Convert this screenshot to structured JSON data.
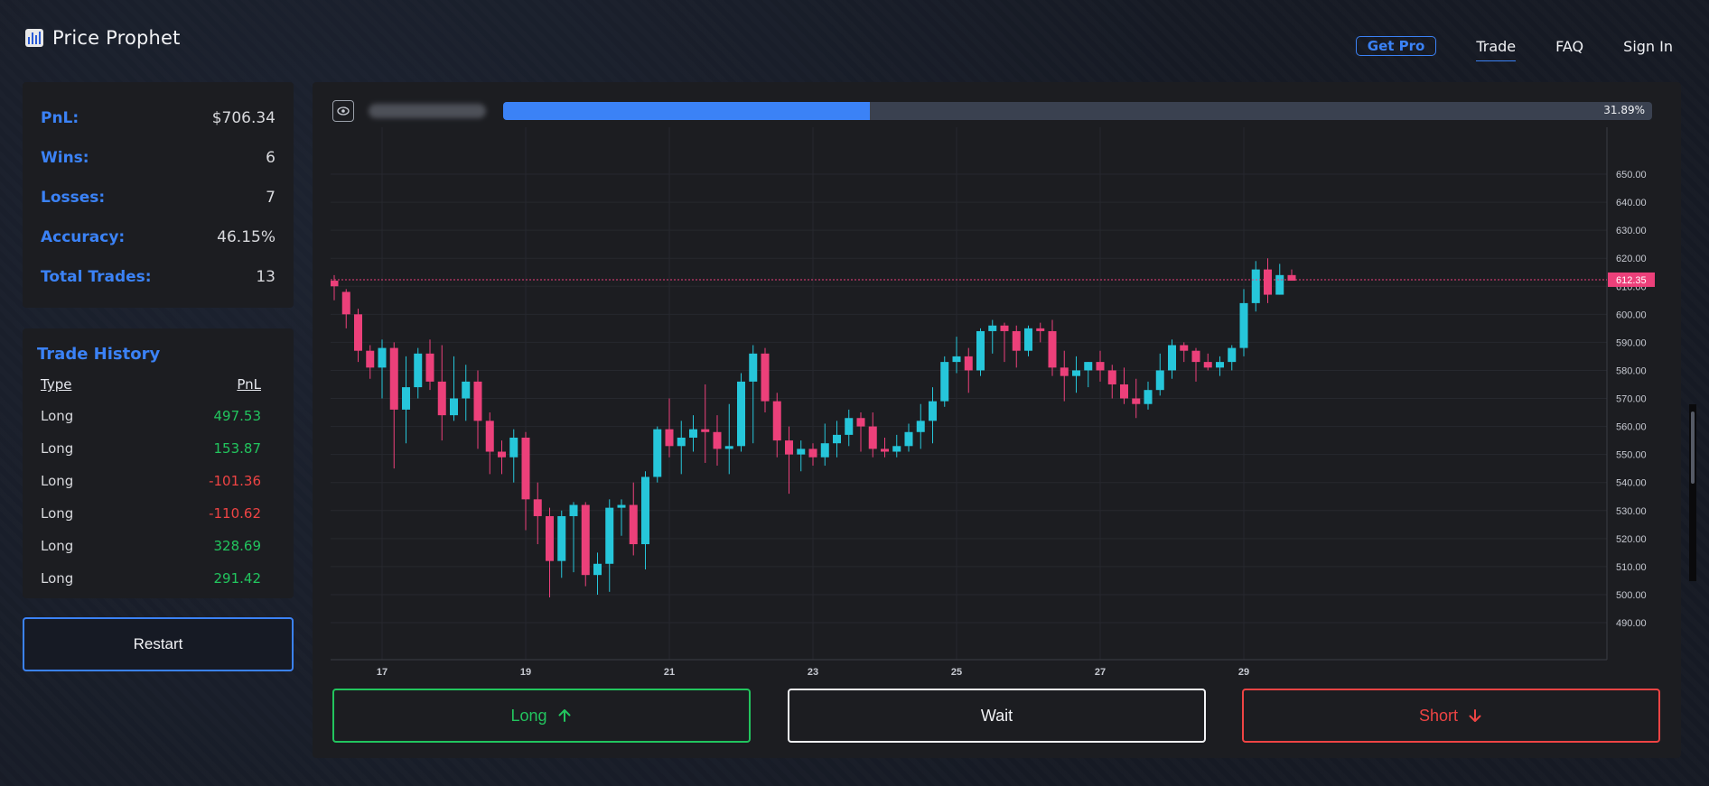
{
  "app": {
    "title": "Price Prophet"
  },
  "nav": {
    "get_pro": "Get Pro",
    "trade": "Trade",
    "faq": "FAQ",
    "sign_in": "Sign In"
  },
  "stats": {
    "pnl_label": "PnL:",
    "pnl_value": "$706.34",
    "wins_label": "Wins:",
    "wins_value": "6",
    "losses_label": "Losses:",
    "losses_value": "7",
    "accuracy_label": "Accuracy:",
    "accuracy_value": "46.15%",
    "total_label": "Total Trades:",
    "total_value": "13"
  },
  "history": {
    "title": "Trade History",
    "col_type": "Type",
    "col_pnl": "PnL",
    "rows": [
      {
        "type": "Long",
        "pnl": "497.53"
      },
      {
        "type": "Long",
        "pnl": "153.87"
      },
      {
        "type": "Long",
        "pnl": "-101.36"
      },
      {
        "type": "Long",
        "pnl": "-110.62"
      },
      {
        "type": "Long",
        "pnl": "328.69"
      },
      {
        "type": "Long",
        "pnl": "291.42"
      }
    ]
  },
  "restart_label": "Restart",
  "progress": {
    "percent": 31.89,
    "label": "31.89%"
  },
  "actions": {
    "long": "Long",
    "wait": "Wait",
    "short": "Short"
  },
  "colors": {
    "accent": "#3b82f6",
    "up": "#26c6da",
    "down": "#ec407a",
    "long": "#22c55e",
    "short": "#ef4444"
  },
  "chart_data": {
    "type": "candlestick",
    "price_axis": [
      "650.00",
      "640.00",
      "630.00",
      "620.00",
      "610.00",
      "600.00",
      "590.00",
      "580.00",
      "570.00",
      "560.00",
      "550.00",
      "540.00",
      "530.00",
      "520.00",
      "510.00",
      "500.00",
      "490.00"
    ],
    "ylim": [
      484,
      656
    ],
    "date_labels": [
      {
        "label": "17",
        "index": 4
      },
      {
        "label": "19",
        "index": 16
      },
      {
        "label": "21",
        "index": 28
      },
      {
        "label": "23",
        "index": 40
      },
      {
        "label": "25",
        "index": 52
      },
      {
        "label": "27",
        "index": 64
      },
      {
        "label": "29",
        "index": 76
      }
    ],
    "current_price": "612.35",
    "candles": [
      [
        612,
        614,
        605,
        610
      ],
      [
        608,
        609,
        595,
        600
      ],
      [
        600,
        602,
        583,
        587
      ],
      [
        587,
        589,
        577,
        581
      ],
      [
        581,
        591,
        570,
        588
      ],
      [
        588,
        590,
        545,
        566
      ],
      [
        566,
        585,
        554,
        574
      ],
      [
        574,
        588,
        570,
        586
      ],
      [
        586,
        591,
        573,
        576
      ],
      [
        576,
        589,
        555,
        564
      ],
      [
        564,
        585,
        562,
        570
      ],
      [
        570,
        582,
        562,
        576
      ],
      [
        576,
        580,
        552,
        562
      ],
      [
        562,
        565,
        543,
        551
      ],
      [
        551,
        555,
        543,
        549
      ],
      [
        549,
        559,
        540,
        556
      ],
      [
        556,
        558,
        523,
        534
      ],
      [
        534,
        540,
        518,
        528
      ],
      [
        528,
        531,
        499,
        512
      ],
      [
        512,
        530,
        506,
        528
      ],
      [
        528,
        533,
        508,
        532
      ],
      [
        532,
        533,
        503,
        507
      ],
      [
        507,
        515,
        500,
        511
      ],
      [
        511,
        534,
        501,
        531
      ],
      [
        531,
        534,
        521,
        532
      ],
      [
        532,
        540,
        514,
        518
      ],
      [
        518,
        544,
        509,
        542
      ],
      [
        542,
        560,
        540,
        559
      ],
      [
        559,
        570,
        549,
        553
      ],
      [
        553,
        562,
        543,
        556
      ],
      [
        556,
        564,
        551,
        559
      ],
      [
        559,
        575,
        547,
        558
      ],
      [
        558,
        564,
        546,
        552
      ],
      [
        552,
        568,
        543,
        553
      ],
      [
        553,
        579,
        551,
        576
      ],
      [
        576,
        589,
        554,
        586
      ],
      [
        586,
        588,
        565,
        569
      ],
      [
        569,
        572,
        549,
        555
      ],
      [
        555,
        560,
        536,
        550
      ],
      [
        550,
        555,
        544,
        552
      ],
      [
        552,
        554,
        546,
        549
      ],
      [
        549,
        561,
        546,
        554
      ],
      [
        554,
        562,
        549,
        557
      ],
      [
        557,
        566,
        553,
        563
      ],
      [
        563,
        565,
        551,
        560
      ],
      [
        560,
        565,
        549,
        552
      ],
      [
        552,
        556,
        549,
        551
      ],
      [
        551,
        557,
        549,
        553
      ],
      [
        553,
        561,
        551,
        558
      ],
      [
        558,
        568,
        552,
        562
      ],
      [
        562,
        574,
        554,
        569
      ],
      [
        569,
        585,
        567,
        583
      ],
      [
        583,
        592,
        579,
        585
      ],
      [
        585,
        588,
        572,
        580
      ],
      [
        580,
        595,
        578,
        594
      ],
      [
        594,
        598,
        586,
        596
      ],
      [
        596,
        597,
        583,
        594
      ],
      [
        594,
        596,
        581,
        587
      ],
      [
        587,
        596,
        585,
        595
      ],
      [
        595,
        597,
        590,
        594
      ],
      [
        594,
        598,
        578,
        581
      ],
      [
        581,
        587,
        569,
        578
      ],
      [
        578,
        585,
        572,
        580
      ],
      [
        580,
        583,
        574,
        583
      ],
      [
        583,
        587,
        576,
        580
      ],
      [
        580,
        582,
        570,
        575
      ],
      [
        575,
        581,
        568,
        570
      ],
      [
        570,
        577,
        563,
        568
      ],
      [
        568,
        576,
        566,
        573
      ],
      [
        573,
        586,
        571,
        580
      ],
      [
        580,
        591,
        577,
        589
      ],
      [
        589,
        590,
        583,
        587
      ],
      [
        587,
        588,
        576,
        583
      ],
      [
        583,
        586,
        580,
        581
      ],
      [
        581,
        585,
        578,
        583
      ],
      [
        583,
        589,
        580,
        588
      ],
      [
        588,
        609,
        585,
        604
      ],
      [
        604,
        619,
        601,
        616
      ],
      [
        616,
        620,
        604,
        607
      ],
      [
        607,
        618,
        607,
        614
      ],
      [
        614,
        616,
        612,
        612
      ]
    ]
  }
}
